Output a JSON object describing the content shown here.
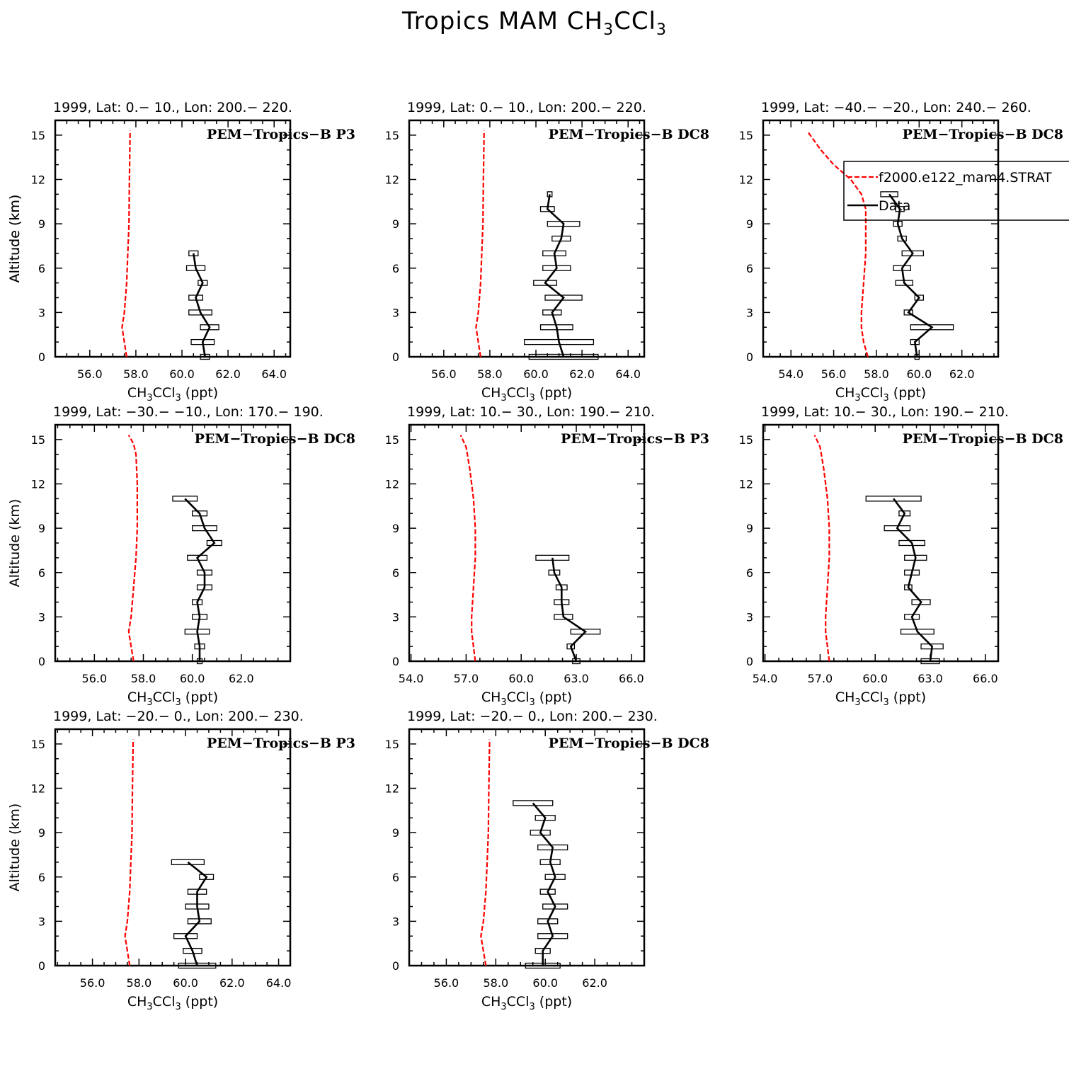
{
  "title": "Tropics MAM CH₃CCl₃",
  "chart_data": [
    {
      "type": "line",
      "region": "1999, Lat: 0.− 10., Lon: 200.− 220.",
      "campaign": "PEM−Tropics−B P3",
      "xlabel": "CH₃CCl₃ (ppt)",
      "ylabel": "Altitude (km)",
      "xlim": [
        54.5,
        64.7
      ],
      "ylim": [
        0,
        16
      ],
      "xticks": [
        "56.0",
        "58.0",
        "60.0",
        "62.0",
        "64.0"
      ],
      "yticks": [
        "0",
        "3",
        "6",
        "9",
        "12",
        "15"
      ],
      "model": {
        "x": [
          57.6,
          57.5,
          57.4,
          57.5,
          57.6,
          57.65,
          57.7,
          57.72,
          57.75
        ],
        "y": [
          0,
          1,
          2,
          3,
          5,
          7,
          9,
          12,
          15.3
        ]
      },
      "data": {
        "y": [
          0,
          1,
          2,
          3,
          4,
          5,
          6,
          7
        ],
        "x": [
          61.0,
          60.9,
          61.2,
          60.8,
          60.6,
          60.9,
          60.6,
          60.5
        ],
        "err": [
          0.2,
          0.5,
          0.4,
          0.5,
          0.3,
          0.2,
          0.4,
          0.2
        ]
      }
    },
    {
      "type": "line",
      "region": "1999, Lat: 0.− 10., Lon: 200.− 220.",
      "campaign": "PEM−Tropics−B DC8",
      "xlabel": "CH₃CCl₃ (ppt)",
      "ylabel": "Altitude (km)",
      "xlim": [
        54.5,
        64.7
      ],
      "ylim": [
        0,
        16
      ],
      "xticks": [
        "56.0",
        "58.0",
        "60.0",
        "62.0",
        "64.0"
      ],
      "yticks": [
        "0",
        "3",
        "6",
        "9",
        "12",
        "15"
      ],
      "model": {
        "x": [
          57.6,
          57.5,
          57.4,
          57.5,
          57.6,
          57.65,
          57.7,
          57.72,
          57.75
        ],
        "y": [
          0,
          1,
          2,
          3,
          5,
          7,
          9,
          12,
          15.3
        ]
      },
      "data": {
        "y": [
          0,
          1,
          2,
          3,
          4,
          5,
          6,
          7,
          8,
          9,
          10,
          11
        ],
        "x": [
          61.2,
          61.0,
          60.9,
          60.7,
          61.2,
          60.4,
          60.9,
          60.8,
          61.1,
          61.2,
          60.5,
          60.6
        ],
        "err": [
          1.5,
          1.5,
          0.7,
          0.4,
          0.8,
          0.5,
          0.6,
          0.5,
          0.4,
          0.7,
          0.3,
          0.1
        ]
      }
    },
    {
      "type": "line",
      "region": "1999, Lat: −40.− −20., Lon: 240.− 260.",
      "campaign": "PEM−Tropics−B DC8",
      "xlabel": "CH₃CCl₃ (ppt)",
      "ylabel": "",
      "xlim": [
        52.7,
        63.7
      ],
      "ylim": [
        0,
        16
      ],
      "xticks": [
        "54.0",
        "56.0",
        "58.0",
        "60.0",
        "62.0"
      ],
      "yticks": [
        "0",
        "3",
        "6",
        "9",
        "12",
        "15"
      ],
      "model": {
        "x": [
          57.6,
          57.4,
          57.3,
          57.3,
          57.4,
          57.5,
          57.5,
          57.5,
          57.3,
          56.8,
          56.0,
          55.4,
          54.8
        ],
        "y": [
          0,
          1,
          2,
          3,
          5,
          7,
          9,
          10,
          11,
          12,
          13,
          14,
          15.2
        ]
      },
      "data": {
        "y": [
          0,
          1,
          2,
          3,
          4,
          5,
          6,
          7,
          8,
          9,
          10,
          11
        ],
        "x": [
          59.9,
          59.8,
          60.6,
          59.5,
          60.0,
          59.3,
          59.2,
          59.7,
          59.2,
          59.0,
          59.1,
          58.6
        ],
        "err": [
          0.1,
          0.2,
          1.0,
          0.2,
          0.2,
          0.4,
          0.4,
          0.5,
          0.2,
          0.2,
          0.2,
          0.4
        ]
      }
    },
    {
      "type": "line",
      "region": "1999, Lat: −30.− −10., Lon: 170.− 190.",
      "campaign": "PEM−Tropics−B DC8",
      "xlabel": "CH₃CCl₃ (ppt)",
      "ylabel": "Altitude (km)",
      "xlim": [
        54.4,
        64.0
      ],
      "ylim": [
        0,
        16
      ],
      "xticks": [
        "56.0",
        "58.0",
        "60.0",
        "62.0"
      ],
      "yticks": [
        "0",
        "3",
        "6",
        "9",
        "12",
        "15"
      ],
      "model": {
        "x": [
          57.6,
          57.5,
          57.4,
          57.5,
          57.6,
          57.7,
          57.75,
          57.75,
          57.7,
          57.6,
          57.4
        ],
        "y": [
          0,
          1,
          2,
          3,
          5,
          7,
          9,
          12,
          14,
          14.7,
          15.3
        ]
      },
      "data": {
        "y": [
          0,
          1,
          2,
          3,
          4,
          5,
          6,
          7,
          8,
          9,
          10,
          11
        ],
        "x": [
          60.3,
          60.3,
          60.2,
          60.3,
          60.2,
          60.5,
          60.5,
          60.2,
          60.9,
          60.5,
          60.3,
          59.7
        ],
        "err": [
          0.1,
          0.2,
          0.5,
          0.3,
          0.2,
          0.3,
          0.3,
          0.4,
          0.3,
          0.5,
          0.3,
          0.5
        ]
      }
    },
    {
      "type": "line",
      "region": "1999, Lat: 10.− 30., Lon: 190.− 210.",
      "campaign": "PEM−Tropics−B P3",
      "xlabel": "CH₃CCl₃ (ppt)",
      "ylabel": "",
      "xlim": [
        53.9,
        66.7
      ],
      "ylim": [
        0,
        16
      ],
      "xticks": [
        "54.0",
        "57.0",
        "60.0",
        "63.0",
        "66.0"
      ],
      "yticks": [
        "0",
        "3",
        "6",
        "9",
        "12",
        "15"
      ],
      "model": {
        "x": [
          57.5,
          57.4,
          57.3,
          57.3,
          57.4,
          57.5,
          57.5,
          57.4,
          57.2,
          57.0,
          56.7
        ],
        "y": [
          0,
          1,
          2,
          3,
          5,
          7,
          9,
          11,
          13,
          14.5,
          15.3
        ]
      },
      "data": {
        "y": [
          0,
          1,
          2,
          3,
          4,
          5,
          6,
          7
        ],
        "x": [
          63.0,
          62.7,
          63.5,
          62.3,
          62.2,
          62.2,
          61.8,
          61.7
        ],
        "err": [
          0.2,
          0.2,
          0.8,
          0.5,
          0.4,
          0.3,
          0.3,
          0.9
        ]
      }
    },
    {
      "type": "line",
      "region": "1999, Lat: 10.− 30., Lon: 190.− 210.",
      "campaign": "PEM−Tropics−B DC8",
      "xlabel": "CH₃CCl₃ (ppt)",
      "ylabel": "",
      "xlim": [
        53.9,
        66.7
      ],
      "ylim": [
        0,
        16
      ],
      "xticks": [
        "54.0",
        "57.0",
        "60.0",
        "63.0",
        "66.0"
      ],
      "yticks": [
        "0",
        "3",
        "6",
        "9",
        "12",
        "15"
      ],
      "model": {
        "x": [
          57.5,
          57.4,
          57.3,
          57.3,
          57.4,
          57.5,
          57.5,
          57.4,
          57.2,
          57.0,
          56.7
        ],
        "y": [
          0,
          1,
          2,
          3,
          5,
          7,
          9,
          11,
          13,
          14.5,
          15.3
        ]
      },
      "data": {
        "y": [
          0,
          1,
          2,
          3,
          4,
          5,
          6,
          7,
          8,
          9,
          10,
          11
        ],
        "x": [
          63.0,
          63.1,
          62.3,
          62.0,
          62.5,
          61.8,
          62.0,
          62.2,
          62.0,
          61.2,
          61.6,
          61.0
        ],
        "err": [
          0.5,
          0.6,
          0.9,
          0.4,
          0.5,
          0.2,
          0.4,
          0.6,
          0.7,
          0.7,
          0.3,
          1.5
        ]
      }
    },
    {
      "type": "line",
      "region": "1999, Lat: −20.− 0., Lon: 200.− 230.",
      "campaign": "PEM−Tropics−B P3",
      "xlabel": "CH₃CCl₃ (ppt)",
      "ylabel": "Altitude (km)",
      "xlim": [
        54.4,
        64.5
      ],
      "ylim": [
        0,
        16
      ],
      "xticks": [
        "56.0",
        "58.0",
        "60.0",
        "62.0",
        "64.0"
      ],
      "yticks": [
        "0",
        "3",
        "6",
        "9",
        "12",
        "15"
      ],
      "model": {
        "x": [
          57.6,
          57.5,
          57.4,
          57.5,
          57.6,
          57.65,
          57.7,
          57.72,
          57.75
        ],
        "y": [
          0,
          1,
          2,
          3,
          5,
          7,
          9,
          12,
          15.3
        ]
      },
      "data": {
        "y": [
          0,
          1,
          2,
          3,
          4,
          5,
          6,
          7
        ],
        "x": [
          60.5,
          60.3,
          60.0,
          60.6,
          60.5,
          60.5,
          60.9,
          60.1
        ],
        "err": [
          0.8,
          0.4,
          0.5,
          0.5,
          0.5,
          0.4,
          0.3,
          0.7
        ]
      }
    },
    {
      "type": "line",
      "region": "1999, Lat: −20.− 0., Lon: 200.− 230.",
      "campaign": "PEM−Tropics−B DC8",
      "xlabel": "CH₃CCl₃ (ppt)",
      "ylabel": "",
      "xlim": [
        54.5,
        64.0
      ],
      "ylim": [
        0,
        16
      ],
      "xticks": [
        "56.0",
        "58.0",
        "60.0",
        "62.0"
      ],
      "yticks": [
        "0",
        "3",
        "6",
        "9",
        "12",
        "15"
      ],
      "model": {
        "x": [
          57.6,
          57.5,
          57.4,
          57.5,
          57.6,
          57.65,
          57.7,
          57.72,
          57.75
        ],
        "y": [
          0,
          1,
          2,
          3,
          5,
          7,
          9,
          12,
          15.3
        ]
      },
      "data": {
        "y": [
          0,
          1,
          2,
          3,
          4,
          5,
          6,
          7,
          8,
          9,
          10,
          11
        ],
        "x": [
          59.9,
          59.9,
          60.3,
          60.1,
          60.4,
          60.1,
          60.4,
          60.2,
          60.3,
          59.8,
          60.0,
          59.5
        ],
        "err": [
          0.7,
          0.3,
          0.6,
          0.4,
          0.5,
          0.3,
          0.4,
          0.4,
          0.6,
          0.4,
          0.4,
          0.8
        ]
      }
    }
  ],
  "legend": {
    "items": [
      {
        "name": "f2000.e122_mam4.STRAT",
        "color": "#ff0000",
        "style": "dashed"
      },
      {
        "name": "Data",
        "color": "#000000",
        "style": "solid"
      }
    ]
  },
  "colors": {
    "model": "#ff0000",
    "data": "#000000"
  }
}
